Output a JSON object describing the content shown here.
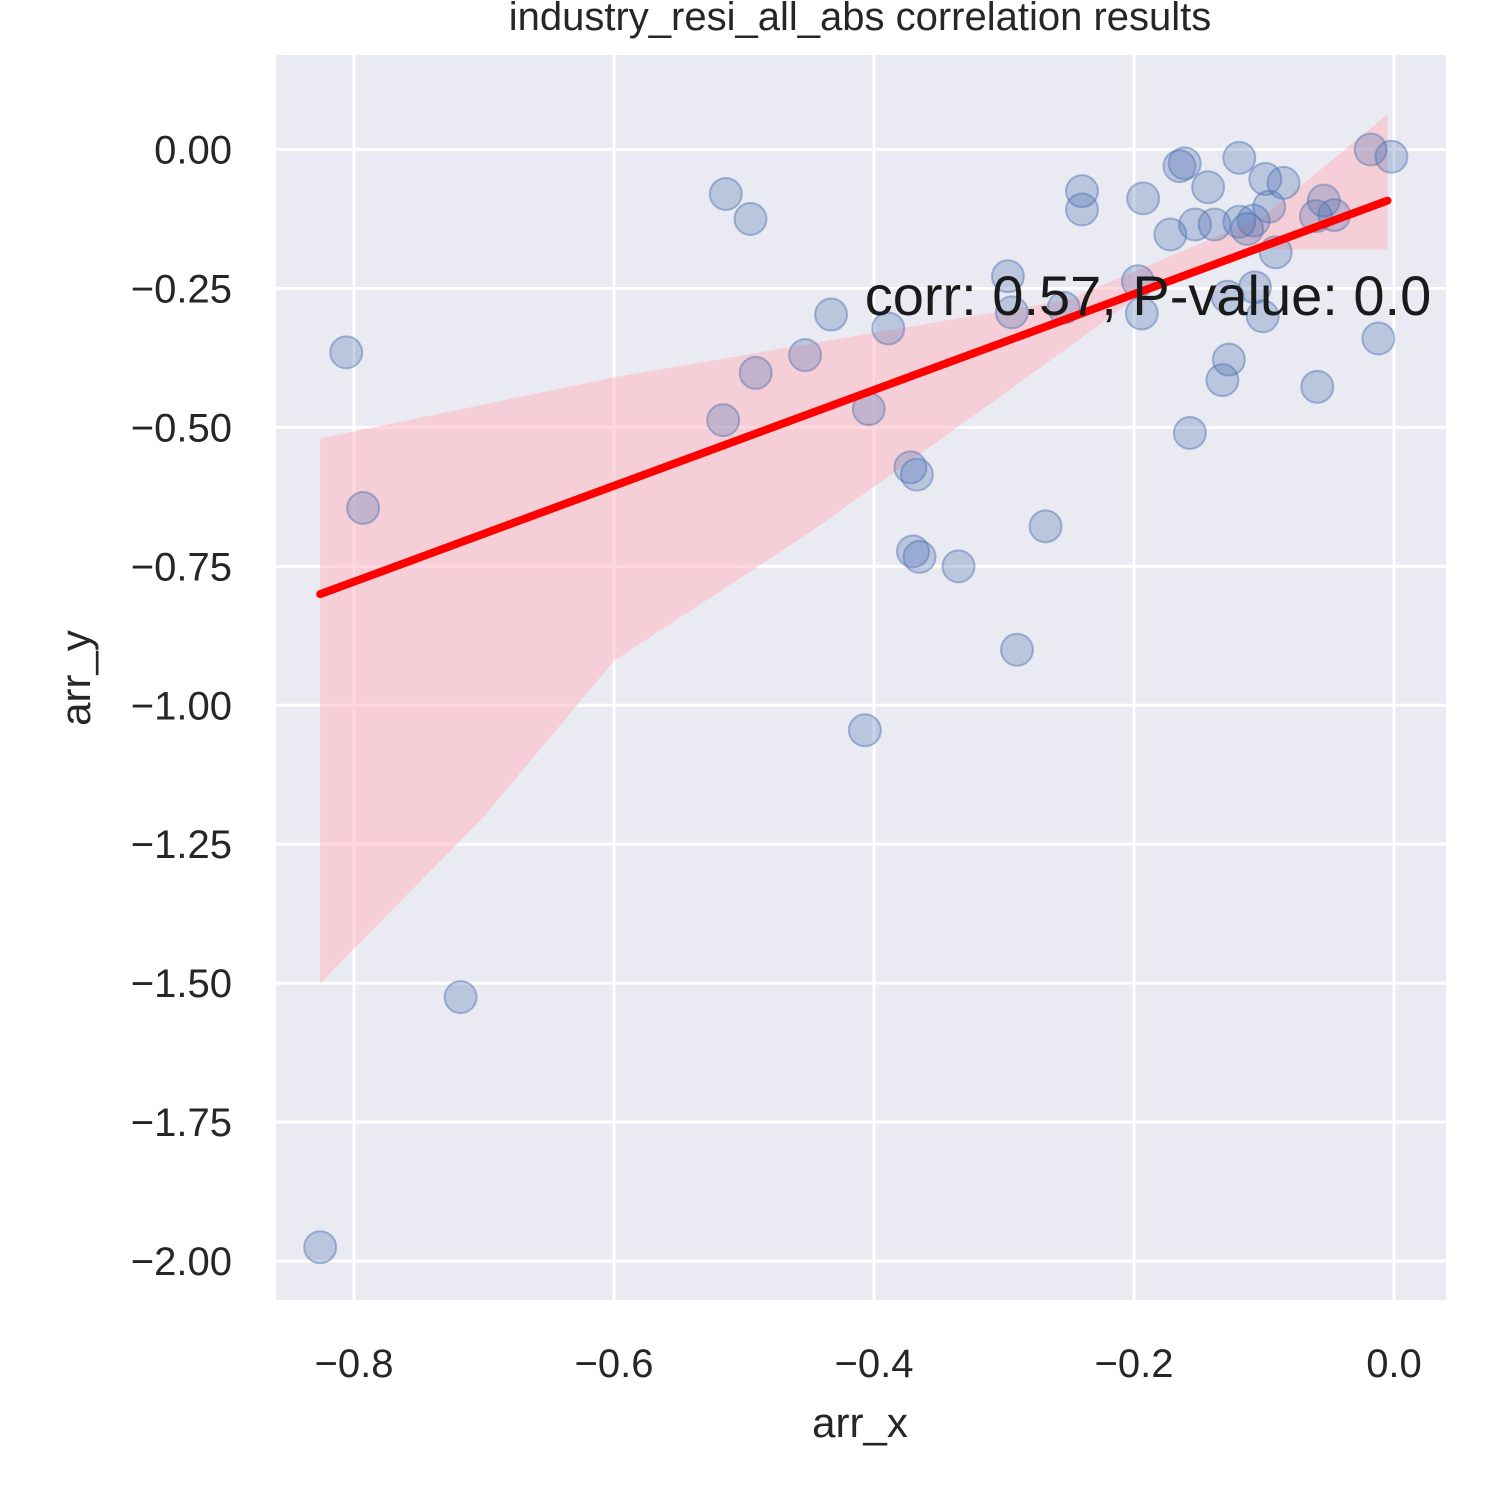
{
  "chart_data": {
    "type": "scatter",
    "title": "industry_resi_all_abs correlation results",
    "xlabel": "arr_x",
    "ylabel": "arr_y",
    "xlim": [
      -0.86,
      0.04
    ],
    "ylim": [
      -2.07,
      0.17
    ],
    "x_ticks": [
      -0.8,
      -0.6,
      -0.4,
      -0.2,
      0.0
    ],
    "x_tick_labels": [
      "−0.8",
      "−0.6",
      "−0.4",
      "−0.2",
      "0.0"
    ],
    "y_ticks": [
      0.0,
      -0.25,
      -0.5,
      -0.75,
      -1.0,
      -1.25,
      -1.5,
      -1.75,
      -2.0
    ],
    "y_tick_labels": [
      "0.00",
      "−0.25",
      "−0.50",
      "−0.75",
      "−1.00",
      "−1.25",
      "−1.50",
      "−1.75",
      "−2.00"
    ],
    "grid": true,
    "annotation": "corr: 0.57, P-value: 0.0",
    "colors": {
      "background": "#eaeaf2",
      "grid": "#ffffff",
      "points": "#4c72b0",
      "regression_line": "#ff0000",
      "confidence_band": "#ffb6c1"
    },
    "points": [
      {
        "x": -0.826,
        "y": -1.975
      },
      {
        "x": -0.806,
        "y": -0.365
      },
      {
        "x": -0.793,
        "y": -0.645
      },
      {
        "x": -0.718,
        "y": -1.525
      },
      {
        "x": -0.514,
        "y": -0.08
      },
      {
        "x": -0.495,
        "y": -0.125
      },
      {
        "x": -0.516,
        "y": -0.487
      },
      {
        "x": -0.491,
        "y": -0.402
      },
      {
        "x": -0.453,
        "y": -0.37
      },
      {
        "x": -0.433,
        "y": -0.297
      },
      {
        "x": -0.404,
        "y": -0.467
      },
      {
        "x": -0.407,
        "y": -1.045
      },
      {
        "x": -0.389,
        "y": -0.322
      },
      {
        "x": -0.372,
        "y": -0.572
      },
      {
        "x": -0.367,
        "y": -0.585
      },
      {
        "x": -0.37,
        "y": -0.723
      },
      {
        "x": -0.365,
        "y": -0.733
      },
      {
        "x": -0.335,
        "y": -0.75
      },
      {
        "x": -0.297,
        "y": -0.228
      },
      {
        "x": -0.294,
        "y": -0.293
      },
      {
        "x": -0.29,
        "y": -0.9
      },
      {
        "x": -0.268,
        "y": -0.678
      },
      {
        "x": -0.254,
        "y": -0.285
      },
      {
        "x": -0.24,
        "y": -0.075
      },
      {
        "x": -0.24,
        "y": -0.108
      },
      {
        "x": -0.193,
        "y": -0.088
      },
      {
        "x": -0.197,
        "y": -0.237
      },
      {
        "x": -0.194,
        "y": -0.295
      },
      {
        "x": -0.172,
        "y": -0.153
      },
      {
        "x": -0.165,
        "y": -0.03
      },
      {
        "x": -0.161,
        "y": -0.025
      },
      {
        "x": -0.153,
        "y": -0.135
      },
      {
        "x": -0.143,
        "y": -0.068
      },
      {
        "x": -0.138,
        "y": -0.135
      },
      {
        "x": -0.119,
        "y": -0.015
      },
      {
        "x": -0.119,
        "y": -0.13
      },
      {
        "x": -0.113,
        "y": -0.143
      },
      {
        "x": -0.108,
        "y": -0.128
      },
      {
        "x": -0.099,
        "y": -0.053
      },
      {
        "x": -0.096,
        "y": -0.103
      },
      {
        "x": -0.085,
        "y": -0.06
      },
      {
        "x": -0.091,
        "y": -0.185
      },
      {
        "x": -0.06,
        "y": -0.12
      },
      {
        "x": -0.054,
        "y": -0.092
      },
      {
        "x": -0.046,
        "y": -0.118
      },
      {
        "x": -0.018,
        "y": 0.0
      },
      {
        "x": -0.002,
        "y": -0.013
      },
      {
        "x": -0.012,
        "y": -0.34
      },
      {
        "x": -0.107,
        "y": -0.248
      },
      {
        "x": -0.128,
        "y": -0.265
      },
      {
        "x": -0.101,
        "y": -0.3
      },
      {
        "x": -0.127,
        "y": -0.378
      },
      {
        "x": -0.132,
        "y": -0.415
      },
      {
        "x": -0.157,
        "y": -0.51
      },
      {
        "x": -0.059,
        "y": -0.427
      }
    ],
    "regression": {
      "x_start": -0.826,
      "y_start": -0.8,
      "x_end": -0.005,
      "y_end": -0.092
    },
    "confidence_band": {
      "upper": [
        [
          -0.826,
          -0.52
        ],
        [
          -0.6,
          -0.41
        ],
        [
          -0.4,
          -0.33
        ],
        [
          -0.25,
          -0.27
        ],
        [
          -0.15,
          -0.17
        ],
        [
          -0.1,
          -0.12
        ],
        [
          -0.005,
          0.063
        ]
      ],
      "lower": [
        [
          -0.826,
          -1.5
        ],
        [
          -0.7,
          -1.2
        ],
        [
          -0.6,
          -0.92
        ],
        [
          -0.45,
          -0.69
        ],
        [
          -0.3,
          -0.44
        ],
        [
          -0.2,
          -0.27
        ],
        [
          -0.1,
          -0.18
        ],
        [
          -0.005,
          -0.18
        ]
      ]
    }
  }
}
